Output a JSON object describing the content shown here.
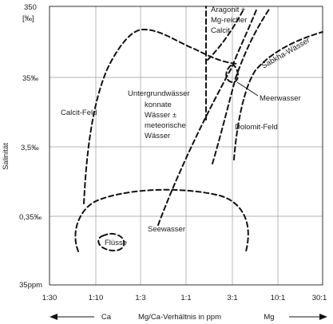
{
  "y_axis": {
    "title": "Salinität",
    "ticks": [
      "350",
      "[‰]",
      "35‰",
      "3,5‰",
      "0,35‰",
      "35ppm"
    ]
  },
  "x_axis": {
    "ticks": [
      "1:30",
      "1:10",
      "1:3",
      "1:1",
      "3:1",
      "10:1",
      "30:1"
    ],
    "bottom_left": "Ca",
    "bottom_center": "Mg/Ca-Verhältnis in ppm",
    "bottom_right": "Mg"
  },
  "regions": {
    "calcit_feld": "Calcit-Feld",
    "untergrund": "Untergrundwässer",
    "konnate_1": "konnate",
    "konnate_2": "Wässer ±",
    "konnate_3": "meteorische",
    "konnate_4": "Wässer",
    "aragonit_1": "Aragonit +",
    "aragonit_2": "Mg-reicher",
    "aragonit_3": "Calcit",
    "sabkha": "Sabkha-Wässer",
    "meerwasser": "Meerwasser",
    "dolomit": "Dolomit-Feld",
    "seewasser": "Seewasser",
    "fluesse": "Flüsse"
  }
}
